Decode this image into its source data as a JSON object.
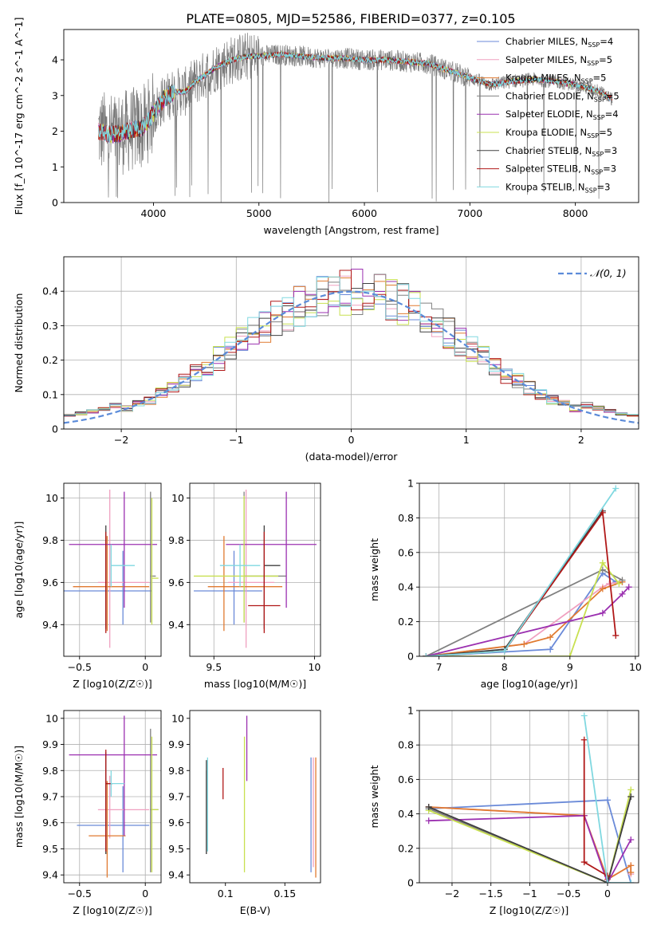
{
  "figure_title": "PLATE=0805, MJD=52586, FIBERID=0377, z=0.105",
  "colors": {
    "chabrier_miles": "#6a8ad8",
    "salpeter_miles": "#f0a0c0",
    "kroupa_miles": "#e07a30",
    "chabrier_elodie": "#808080",
    "salpeter_elodie": "#9b30b0",
    "kroupa_elodie": "#c8e050",
    "chabrier_stelib": "#404040",
    "salpeter_stelib": "#b01818",
    "kroupa_stelib": "#80d8e0",
    "gauss": "#5b8bd9",
    "grid": "#b0b0b0"
  },
  "chart_data": [
    {
      "id": "spectrum",
      "type": "line",
      "title": "PLATE=0805, MJD=52586, FIBERID=0377, z=0.105",
      "xlabel": "wavelength [Angstrom, rest frame]",
      "ylabel": "Flux [f_λ 10^-17 erg cm^-2 s^-1 A^-1]",
      "xlim": [
        3150,
        8600
      ],
      "ylim": [
        0,
        4.85
      ],
      "xticks": [
        4000,
        5000,
        6000,
        7000,
        8000
      ],
      "yticks": [
        0,
        1,
        2,
        3,
        4
      ],
      "grid": false,
      "legend_position": "top-right",
      "continuum": {
        "x": [
          3480,
          3600,
          3700,
          3800,
          3900,
          4000,
          4100,
          4200,
          4300,
          4400,
          4500,
          4600,
          4700,
          4800,
          4900,
          5000,
          5200,
          5400,
          5600,
          5800,
          6000,
          6200,
          6400,
          6600,
          6800,
          7000,
          7200,
          7400,
          7600,
          7800,
          8000,
          8200,
          8350
        ],
        "y": [
          2.0,
          1.9,
          1.95,
          2.05,
          2.1,
          2.5,
          2.9,
          3.1,
          3.1,
          3.4,
          3.6,
          3.8,
          3.95,
          4.05,
          4.1,
          4.1,
          4.15,
          4.1,
          4.05,
          4.05,
          4.0,
          4.0,
          3.95,
          3.9,
          3.7,
          3.5,
          3.3,
          3.4,
          3.45,
          3.4,
          3.3,
          3.15,
          2.9
        ]
      },
      "series": [
        {
          "name": "Chabrier MILES, N_SSP=4",
          "color_key": "chabrier_miles"
        },
        {
          "name": "Salpeter MILES, N_SSP=5",
          "color_key": "salpeter_miles"
        },
        {
          "name": "Kroupa MILES, N_SSP=5",
          "color_key": "kroupa_miles"
        },
        {
          "name": "Chabrier ELODIE, N_SSP=5",
          "color_key": "chabrier_elodie"
        },
        {
          "name": "Salpeter ELODIE, N_SSP=4",
          "color_key": "salpeter_elodie"
        },
        {
          "name": "Kroupa ELODIE, N_SSP=5",
          "color_key": "kroupa_elodie"
        },
        {
          "name": "Chabrier STELIB, N_SSP=3",
          "color_key": "chabrier_stelib"
        },
        {
          "name": "Salpeter STELIB, N_SSP=3",
          "color_key": "salpeter_stelib"
        },
        {
          "name": "Kroupa STELIB, N_SSP=3",
          "color_key": "kroupa_stelib"
        }
      ]
    },
    {
      "id": "residuals",
      "type": "bar",
      "xlabel": "(data-model)/error",
      "ylabel": "Normed distribution",
      "xlim": [
        -2.5,
        2.5
      ],
      "ylim": [
        0,
        0.5
      ],
      "xticks": [
        -2,
        -1,
        0,
        1,
        2
      ],
      "yticks": [
        0.0,
        0.1,
        0.2,
        0.3,
        0.4
      ],
      "grid": true,
      "legend_position": "top-right",
      "legend": "𝒩(0, 1)",
      "bin_edges": [
        -2.5,
        2.5
      ],
      "bins": 50
    },
    {
      "id": "age_vs_z",
      "type": "scatter",
      "xlabel": "Z [log10(Z/Z☉)]",
      "ylabel": "age [log10(age/yr)]",
      "xlim": [
        -0.62,
        0.12
      ],
      "ylim": [
        9.25,
        10.07
      ],
      "xticks": [
        -0.5,
        0.0
      ],
      "yticks": [
        9.4,
        9.6,
        9.8,
        10.0
      ],
      "grid": true,
      "points": [
        {
          "series": "chabrier_miles",
          "x": -0.17,
          "y": 9.56,
          "xerr": [
            0.45,
            0.22
          ],
          "yerr": [
            0.16,
            0.19
          ]
        },
        {
          "series": "salpeter_miles",
          "x": -0.27,
          "y": 9.6,
          "xerr": [
            0.09,
            0.3
          ],
          "yerr": [
            0.31,
            0.44
          ]
        },
        {
          "series": "kroupa_miles",
          "x": -0.29,
          "y": 9.58,
          "xerr": [
            0.26,
            0.32
          ],
          "yerr": [
            0.21,
            0.24
          ]
        },
        {
          "series": "chabrier_elodie",
          "x": 0.04,
          "y": 9.63,
          "xerr": [
            0.0,
            0.04
          ],
          "yerr": [
            0.22,
            0.4
          ]
        },
        {
          "series": "salpeter_elodie",
          "x": -0.16,
          "y": 9.78,
          "xerr": [
            0.42,
            0.25
          ],
          "yerr": [
            0.3,
            0.25
          ]
        },
        {
          "series": "kroupa_elodie",
          "x": 0.05,
          "y": 9.62,
          "xerr": [
            0.0,
            0.05
          ],
          "yerr": [
            0.22,
            0.38
          ]
        },
        {
          "series": "chabrier_stelib",
          "x": -0.3,
          "y": 9.68,
          "xerr": [
            0.0,
            0.0
          ],
          "yerr": [
            0.3,
            0.19
          ]
        },
        {
          "series": "salpeter_stelib",
          "x": -0.3,
          "y": 9.49,
          "xerr": [
            0.0,
            0.0
          ],
          "yerr": [
            0.13,
            0.35
          ]
        },
        {
          "series": "kroupa_stelib",
          "x": -0.26,
          "y": 9.68,
          "xerr": [
            0.0,
            0.18
          ],
          "yerr": [
            0.1,
            0.1
          ]
        }
      ]
    },
    {
      "id": "age_vs_mass",
      "type": "scatter",
      "xlabel": "mass [log10(M/M☉)]",
      "ylabel": "",
      "xlim": [
        9.38,
        10.03
      ],
      "ylim": [
        9.25,
        10.07
      ],
      "xticks": [
        9.5,
        10.0
      ],
      "yticks": [
        9.4,
        9.6,
        9.8,
        10.0
      ],
      "grid": true,
      "points": [
        {
          "series": "chabrier_miles",
          "x": 9.6,
          "y": 9.56,
          "xerr": [
            0.2,
            0.14
          ],
          "yerr": [
            0.16,
            0.19
          ]
        },
        {
          "series": "salpeter_miles",
          "x": 9.66,
          "y": 9.6,
          "xerr": [
            0.09,
            0.14
          ],
          "yerr": [
            0.31,
            0.44
          ]
        },
        {
          "series": "kroupa_miles",
          "x": 9.55,
          "y": 9.58,
          "xerr": [
            0.08,
            0.29
          ],
          "yerr": [
            0.21,
            0.24
          ]
        },
        {
          "series": "chabrier_elodie",
          "x": 9.65,
          "y": 9.63,
          "xerr": [
            0.0,
            0.21
          ],
          "yerr": [
            0.22,
            0.4
          ]
        },
        {
          "series": "salpeter_elodie",
          "x": 9.86,
          "y": 9.78,
          "xerr": [
            0.3,
            0.15
          ],
          "yerr": [
            0.3,
            0.25
          ]
        },
        {
          "series": "kroupa_elodie",
          "x": 9.65,
          "y": 9.63,
          "xerr": [
            0.25,
            0.17
          ],
          "yerr": [
            0.22,
            0.38
          ]
        },
        {
          "series": "chabrier_stelib",
          "x": 9.75,
          "y": 9.68,
          "xerr": [
            0.0,
            0.08
          ],
          "yerr": [
            0.3,
            0.19
          ]
        },
        {
          "series": "salpeter_stelib",
          "x": 9.75,
          "y": 9.49,
          "xerr": [
            0.08,
            0.08
          ],
          "yerr": [
            0.13,
            0.35
          ]
        },
        {
          "series": "kroupa_stelib",
          "x": 9.63,
          "y": 9.68,
          "xerr": [
            0.1,
            0.1
          ],
          "yerr": [
            0.1,
            0.1
          ]
        }
      ]
    },
    {
      "id": "weight_vs_age",
      "type": "line",
      "xlabel": "age [log10(age/yr)]",
      "ylabel": "mass weight",
      "xlim": [
        6.7,
        10.05
      ],
      "ylim": [
        0,
        1.0
      ],
      "xticks": [
        7,
        8,
        9,
        10
      ],
      "yticks": [
        0.0,
        0.2,
        0.4,
        0.6,
        0.8,
        1.0
      ],
      "grid": true,
      "series": [
        {
          "series": "chabrier_miles",
          "x": [
            6.8,
            8.7,
            9.5,
            9.7
          ],
          "y": [
            0.0,
            0.04,
            0.48,
            0.43
          ]
        },
        {
          "series": "salpeter_miles",
          "x": [
            6.8,
            8.3,
            9.5,
            9.6,
            9.8
          ],
          "y": [
            0.0,
            0.07,
            0.4,
            0.42,
            0.43
          ]
        },
        {
          "series": "kroupa_miles",
          "x": [
            6.8,
            8.3,
            8.7,
            9.5,
            9.8
          ],
          "y": [
            0.0,
            0.07,
            0.11,
            0.39,
            0.43
          ]
        },
        {
          "series": "chabrier_elodie",
          "x": [
            6.8,
            9.5,
            9.8
          ],
          "y": [
            0.0,
            0.5,
            0.44
          ]
        },
        {
          "series": "salpeter_elodie",
          "x": [
            6.8,
            9.5,
            9.8,
            9.9
          ],
          "y": [
            0.0,
            0.25,
            0.36,
            0.4
          ]
        },
        {
          "series": "kroupa_elodie",
          "x": [
            6.8,
            9.0,
            9.5,
            9.75
          ],
          "y": [
            0.0,
            0.0,
            0.54,
            0.42
          ]
        },
        {
          "series": "chabrier_stelib",
          "x": [
            6.8,
            8.0,
            9.5
          ],
          "y": [
            0.0,
            0.04,
            0.84
          ]
        },
        {
          "series": "salpeter_stelib",
          "x": [
            6.8,
            8.0,
            9.5,
            9.7
          ],
          "y": [
            0.0,
            0.03,
            0.83,
            0.12
          ]
        },
        {
          "series": "kroupa_stelib",
          "x": [
            6.8,
            8.0,
            9.7
          ],
          "y": [
            0.0,
            0.03,
            0.97
          ]
        }
      ]
    },
    {
      "id": "mass_vs_z",
      "type": "scatter",
      "xlabel": "Z [log10(Z/Z☉)]",
      "ylabel": "mass [log10(M/M☉)]",
      "xlim": [
        -0.62,
        0.12
      ],
      "ylim": [
        9.37,
        10.03
      ],
      "xticks": [
        -0.5,
        0.0
      ],
      "yticks": [
        9.4,
        9.5,
        9.6,
        9.7,
        9.8,
        9.9,
        10.0
      ],
      "grid": true,
      "points": [
        {
          "series": "chabrier_miles",
          "x": -0.17,
          "y": 9.59,
          "xerr": [
            0.35,
            0.2
          ],
          "yerr": [
            0.18,
            0.15
          ]
        },
        {
          "series": "salpeter_miles",
          "x": -0.27,
          "y": 9.65,
          "xerr": [
            0.09,
            0.3
          ],
          "yerr": [
            0.11,
            0.13
          ]
        },
        {
          "series": "kroupa_miles",
          "x": -0.29,
          "y": 9.55,
          "xerr": [
            0.14,
            0.14
          ],
          "yerr": [
            0.16,
            0.21
          ]
        },
        {
          "series": "chabrier_elodie",
          "x": 0.04,
          "y": 9.65,
          "xerr": [
            0.0,
            0.06
          ],
          "yerr": [
            0.24,
            0.31
          ]
        },
        {
          "series": "salpeter_elodie",
          "x": -0.16,
          "y": 9.86,
          "xerr": [
            0.42,
            0.25
          ],
          "yerr": [
            0.31,
            0.15
          ]
        },
        {
          "series": "kroupa_elodie",
          "x": 0.05,
          "y": 9.65,
          "xerr": [
            0.0,
            0.05
          ],
          "yerr": [
            0.24,
            0.28
          ]
        },
        {
          "series": "chabrier_stelib",
          "x": -0.3,
          "y": 9.75,
          "xerr": [
            0.0,
            0.05
          ],
          "yerr": [
            0.27,
            0.12
          ]
        },
        {
          "series": "salpeter_stelib",
          "x": -0.3,
          "y": 9.75,
          "xerr": [
            0.0,
            0.05
          ],
          "yerr": [
            0.26,
            0.13
          ]
        },
        {
          "series": "kroupa_stelib",
          "x": -0.26,
          "y": 9.75,
          "xerr": [
            0.0,
            0.1
          ],
          "yerr": [
            0.05,
            0.05
          ]
        }
      ]
    },
    {
      "id": "mass_vs_ebv",
      "type": "scatter",
      "xlabel": "E(B-V)",
      "ylabel": "",
      "xlim": [
        0.07,
        0.18
      ],
      "ylim": [
        9.37,
        10.03
      ],
      "xticks": [
        0.1,
        0.15
      ],
      "yticks": [
        9.4,
        9.5,
        9.6,
        9.7,
        9.8,
        9.9,
        10.0
      ],
      "grid": false,
      "points": [
        {
          "series": "chabrier_miles",
          "x": 0.172,
          "y": 9.59,
          "yerr": [
            0.18,
            0.26
          ]
        },
        {
          "series": "salpeter_miles",
          "x": 0.174,
          "y": 9.65,
          "yerr": [
            0.22,
            0.2
          ]
        },
        {
          "series": "kroupa_miles",
          "x": 0.176,
          "y": 9.55,
          "yerr": [
            0.16,
            0.3
          ]
        },
        {
          "series": "chabrier_elodie",
          "x": 0.084,
          "y": 9.65,
          "yerr": [
            0.17,
            0.15
          ]
        },
        {
          "series": "salpeter_elodie",
          "x": 0.118,
          "y": 9.86,
          "yerr": [
            0.1,
            0.15
          ]
        },
        {
          "series": "kroupa_elodie",
          "x": 0.116,
          "y": 9.65,
          "yerr": [
            0.24,
            0.28
          ]
        },
        {
          "series": "chabrier_stelib",
          "x": 0.084,
          "y": 9.75,
          "yerr": [
            0.27,
            0.09
          ]
        },
        {
          "series": "salpeter_stelib",
          "x": 0.098,
          "y": 9.75,
          "yerr": [
            0.06,
            0.06
          ]
        },
        {
          "series": "kroupa_stelib",
          "x": 0.085,
          "y": 9.65,
          "yerr": [
            0.16,
            0.2
          ]
        }
      ]
    },
    {
      "id": "weight_vs_z",
      "type": "line",
      "xlabel": "Z [log10(Z/Z☉)]",
      "ylabel": "mass weight",
      "xlim": [
        -2.42,
        0.4
      ],
      "ylim": [
        0,
        1.0
      ],
      "xticks": [
        -2.0,
        -1.5,
        -1.0,
        -0.5,
        0.0
      ],
      "yticks": [
        0.0,
        0.2,
        0.4,
        0.6,
        0.8,
        1.0
      ],
      "grid": true,
      "series": [
        {
          "series": "chabrier_miles",
          "x": [
            -2.3,
            0.0,
            0.3
          ],
          "y": [
            0.43,
            0.48,
            0.0
          ]
        },
        {
          "series": "salpeter_miles",
          "x": [
            -2.3,
            -0.3,
            0.0,
            0.3,
            0.3
          ],
          "y": [
            0.44,
            0.39,
            0.02,
            0.1,
            0.05
          ]
        },
        {
          "series": "kroupa_miles",
          "x": [
            -2.3,
            -0.3,
            0.0,
            0.3,
            0.3
          ],
          "y": [
            0.44,
            0.39,
            0.02,
            0.1,
            0.06
          ]
        },
        {
          "series": "chabrier_elodie",
          "x": [
            -2.3,
            0.0,
            0.3
          ],
          "y": [
            0.43,
            0.0,
            0.5
          ]
        },
        {
          "series": "salpeter_elodie",
          "x": [
            -2.3,
            -0.3,
            0.0,
            0.3
          ],
          "y": [
            0.36,
            0.39,
            0.0,
            0.25
          ]
        },
        {
          "series": "kroupa_elodie",
          "x": [
            -2.3,
            0.0,
            0.3
          ],
          "y": [
            0.42,
            0.0,
            0.54
          ]
        },
        {
          "series": "chabrier_stelib",
          "x": [
            -2.3,
            0.0,
            0.3
          ],
          "y": [
            0.44,
            0.0,
            0.5
          ]
        },
        {
          "series": "salpeter_stelib",
          "x": [
            -0.3,
            -0.3,
            0.0
          ],
          "y": [
            0.83,
            0.12,
            0.04
          ]
        },
        {
          "series": "kroupa_stelib",
          "x": [
            -0.3,
            0.0,
            0.3
          ],
          "y": [
            0.97,
            0.0,
            0.0
          ]
        }
      ]
    }
  ]
}
